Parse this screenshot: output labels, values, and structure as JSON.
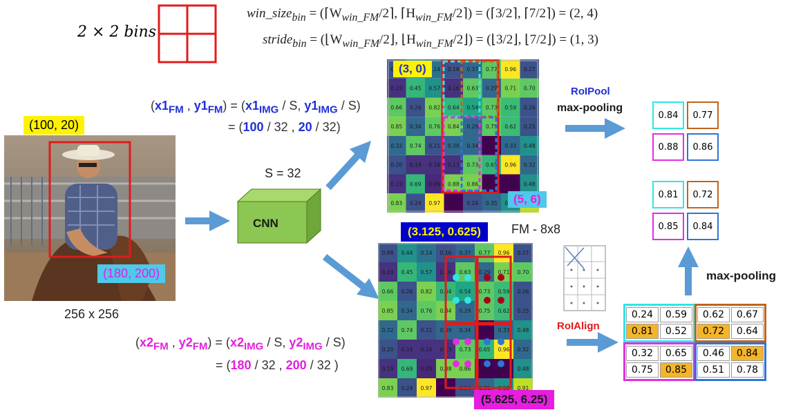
{
  "bins_label": "2 × 2 bins",
  "formula_win": {
    "lhs": "win_size",
    "lhs_sub": "bin",
    "rhs": " = (⌈W",
    "w_sub": "win_FM",
    "mid": "/2⌉, ⌈H",
    "h_sub": "win_FM",
    "tail": "/2⌉) = (⌈3/2⌉, ⌈7/2⌉) = (2, 4)"
  },
  "formula_stride": {
    "lhs": "stride",
    "lhs_sub": "bin",
    "rhs": " = (⌊W",
    "w_sub": "win_FM",
    "mid": "/2⌋, ⌊H",
    "h_sub": "win_FM",
    "tail": "/2⌋) = (⌊3/2⌋, ⌊7/2⌋) = (1, 3)"
  },
  "eq1": {
    "x": "x1",
    "x_sub": "FM",
    "y": "y1",
    "y_sub": "FM",
    "xi": "x1",
    "xi_sub": "IMG",
    "yi": "y1",
    "yi_sub": "IMG",
    "line2_a": "100",
    "line2_b": "20",
    "divisor": "32",
    "s": "S"
  },
  "eq2": {
    "x": "x2",
    "x_sub": "FM",
    "y": "y2",
    "y_sub": "FM",
    "xi": "x2",
    "xi_sub": "IMG",
    "yi": "y2",
    "yi_sub": "IMG",
    "line2_a": "180",
    "line2_b": "200",
    "divisor": "32",
    "s": "S"
  },
  "label_100_20": "(100, 20)",
  "label_180_200": "(180, 200)",
  "label_img_size": "256 x 256",
  "label_s": "S = 32",
  "label_cnn": "CNN",
  "label_3_0": "(3, 0)",
  "label_5_6": "(5, 6)",
  "label_fm": "FM - 8x8",
  "label_3125": "(3.125, 0.625)",
  "label_5625": "(5.625, 6.25)",
  "label_roipool": "RoIPool",
  "label_maxpool_top": "max-pooling",
  "label_maxpool_right": "max-pooling",
  "label_roialign": "RoIAlign",
  "fm_values": [
    [
      "0.88",
      "0.44",
      "0.14",
      "0.16",
      "0.37",
      "0.77",
      "0.96",
      "0.27"
    ],
    [
      "0.19",
      "0.45",
      "0.57",
      "0.16",
      "0.63",
      "0.29",
      "0.71",
      "0.70"
    ],
    [
      "0.66",
      "0.26",
      "0.82",
      "0.64",
      "0.54",
      "0.73",
      "0.59",
      "0.26"
    ],
    [
      "0.85",
      "0.34",
      "0.76",
      "0.84",
      "0.29",
      "0.75",
      "0.62",
      "0.25"
    ],
    [
      "0.32",
      "0.74",
      "0.21",
      "0.39",
      "0.34",
      "0.03",
      "0.33",
      "0.48"
    ],
    [
      "0.20",
      "0.14",
      "0.16",
      "0.13",
      "0.73",
      "0.65",
      "0.96",
      "0.32"
    ],
    [
      "0.19",
      "0.69",
      "0.09",
      "0.88",
      "0.86",
      "0.07",
      "0.01",
      "0.48"
    ],
    [
      "0.83",
      "0.24",
      "0.97",
      "0.04",
      "0.24",
      "0.35",
      "0.50",
      "0.91"
    ]
  ],
  "fm_colors": [
    [
      "#3b528b",
      "#21918c",
      "#2c728e",
      "#3b528b",
      "#31688e",
      "#5ec962",
      "#fde725",
      "#3b528b"
    ],
    [
      "#46327e",
      "#35b779",
      "#21918c",
      "#46327e",
      "#5ec962",
      "#31688e",
      "#7ad151",
      "#5ec962"
    ],
    [
      "#5ec962",
      "#3b528b",
      "#7ad151",
      "#35b779",
      "#21a585",
      "#5ec962",
      "#3bbb75",
      "#3b528b"
    ],
    [
      "#7ad151",
      "#31688e",
      "#5ec962",
      "#7ad151",
      "#31688e",
      "#5ec962",
      "#3bbb75",
      "#3b528b"
    ],
    [
      "#31688e",
      "#5ec962",
      "#3b528b",
      "#31688e",
      "#31688e",
      "#440154",
      "#31688e",
      "#21918c"
    ],
    [
      "#3b528b",
      "#46327e",
      "#46327e",
      "#46327e",
      "#5ec962",
      "#35b779",
      "#fde725",
      "#31688e"
    ],
    [
      "#46327e",
      "#35b779",
      "#482878",
      "#7ad151",
      "#7ad151",
      "#440154",
      "#440154",
      "#21918c"
    ],
    [
      "#7ad151",
      "#3b528b",
      "#fde725",
      "#440154",
      "#3b528b",
      "#31688e",
      "#21918c",
      "#bddf26"
    ]
  ],
  "roipool_out": [
    [
      "0.84",
      "0.77"
    ],
    [
      "0.88",
      "0.86"
    ]
  ],
  "roialign_out": [
    [
      "0.81",
      "0.72"
    ],
    [
      "0.85",
      "0.84"
    ]
  ],
  "roialign_bins": {
    "tl": [
      [
        "0.24",
        "0.59"
      ],
      [
        "0.81",
        "0.52"
      ]
    ],
    "tr": [
      [
        "0.62",
        "0.67"
      ],
      [
        "0.72",
        "0.64"
      ]
    ],
    "bl": [
      [
        "0.32",
        "0.65"
      ],
      [
        "0.75",
        "0.85"
      ]
    ],
    "br": [
      [
        "0.46",
        "0.84"
      ],
      [
        "0.51",
        "0.78"
      ]
    ]
  },
  "colors": {
    "cyan": "#2ee6e6",
    "orange": "#c0641a",
    "magenta": "#e32ee0",
    "blue": "#2f74d6",
    "red": "#e01b1b",
    "arrow": "#5b9bd5",
    "highlight": "#f4b52a"
  }
}
